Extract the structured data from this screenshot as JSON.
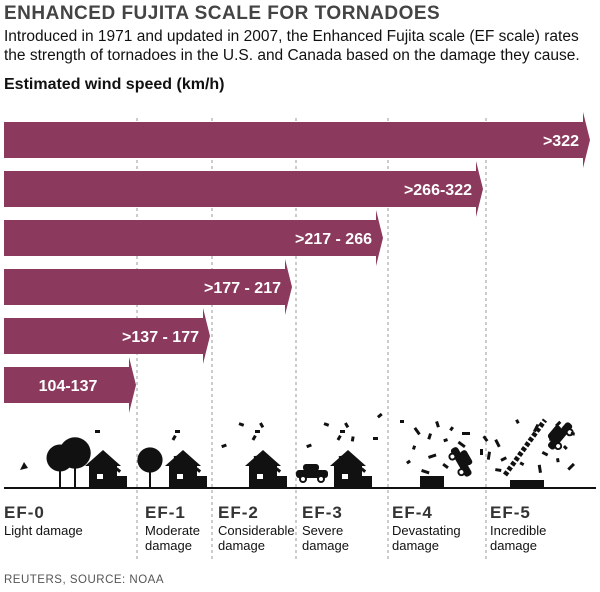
{
  "title": "ENHANCED FUJITA SCALE FOR TORNADOES",
  "subtitle": "Introduced in 1971 and updated in 2007, the Enhanced Fujita scale (EF scale) rates the strength of tornadoes in the U.S. and Canada based on the damage they cause.",
  "source": "REUTERS, SOURCE: NOAA",
  "bar_color": "#8b3a5e",
  "chart_data": {
    "type": "bar",
    "orientation": "horizontal",
    "ylabel": "Estimated wind speed (km/h)",
    "categories": [
      "EF-0",
      "EF-1",
      "EF-2",
      "EF-3",
      "EF-4",
      "EF-5"
    ],
    "descriptions": [
      "Light damage",
      "Moderate damage",
      "Considerable damage",
      "Severe damage",
      "Devastating damage",
      "Incredible damage"
    ],
    "bar_labels": [
      "104-137",
      ">137 - 177",
      ">177 - 217",
      ">217 - 266",
      ">266-322",
      ">322"
    ],
    "ranges": [
      [
        104,
        137
      ],
      [
        137,
        177
      ],
      [
        177,
        217
      ],
      [
        217,
        266
      ],
      [
        266,
        322
      ],
      [
        322,
        null
      ]
    ]
  }
}
